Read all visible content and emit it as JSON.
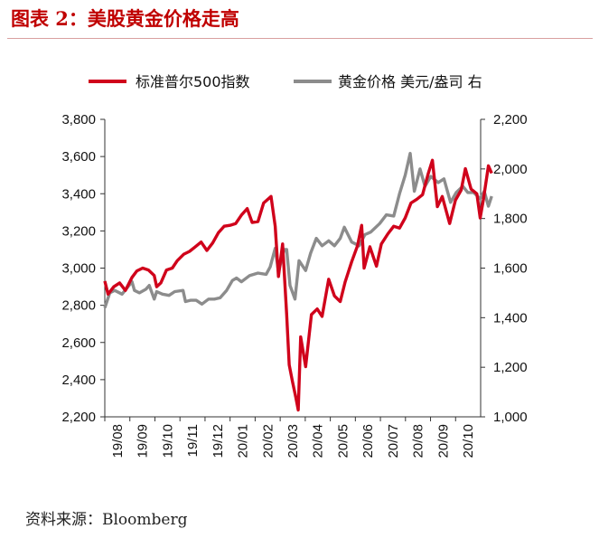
{
  "title": "图表 2：美股黄金价格走高",
  "source": "资料来源：Bloomberg",
  "chart_data": {
    "type": "line",
    "x_tick_labels": [
      "19/08",
      "19/09",
      "19/10",
      "19/11",
      "19/12",
      "20/01",
      "20/02",
      "20/03",
      "20/04",
      "20/05",
      "20/06",
      "20/07",
      "20/08",
      "20/09",
      "20/10"
    ],
    "y_left": {
      "ylim": [
        2200,
        3800
      ],
      "ticks": [
        "2,200",
        "2,400",
        "2,600",
        "2,800",
        "3,000",
        "3,200",
        "3,400",
        "3,600",
        "3,800"
      ]
    },
    "y_right": {
      "ylim": [
        1000,
        2200
      ],
      "ticks": [
        "1,000",
        "1,200",
        "1,400",
        "1,600",
        "1,800",
        "2,000",
        "2,200"
      ]
    },
    "grid": false,
    "legend_position": "top",
    "series": [
      {
        "name": "标准普尔500指数",
        "axis": "left",
        "color": "#d0021b",
        "points": [
          [
            "2019-08-01",
            2930
          ],
          [
            "2019-08-05",
            2860
          ],
          [
            "2019-08-12",
            2900
          ],
          [
            "2019-08-19",
            2920
          ],
          [
            "2019-08-26",
            2880
          ],
          [
            "2019-09-03",
            2950
          ],
          [
            "2019-09-09",
            2985
          ],
          [
            "2019-09-16",
            3000
          ],
          [
            "2019-09-23",
            2990
          ],
          [
            "2019-09-30",
            2960
          ],
          [
            "2019-10-03",
            2900
          ],
          [
            "2019-10-08",
            2920
          ],
          [
            "2019-10-15",
            2990
          ],
          [
            "2019-10-22",
            3000
          ],
          [
            "2019-10-28",
            3040
          ],
          [
            "2019-11-05",
            3075
          ],
          [
            "2019-11-12",
            3090
          ],
          [
            "2019-11-19",
            3115
          ],
          [
            "2019-11-26",
            3140
          ],
          [
            "2019-12-03",
            3095
          ],
          [
            "2019-12-10",
            3135
          ],
          [
            "2019-12-17",
            3190
          ],
          [
            "2019-12-24",
            3225
          ],
          [
            "2019-12-31",
            3230
          ],
          [
            "2020-01-07",
            3240
          ],
          [
            "2020-01-14",
            3285
          ],
          [
            "2020-01-21",
            3320
          ],
          [
            "2020-01-27",
            3245
          ],
          [
            "2020-02-03",
            3250
          ],
          [
            "2020-02-10",
            3350
          ],
          [
            "2020-02-19",
            3385
          ],
          [
            "2020-02-24",
            3225
          ],
          [
            "2020-02-28",
            2955
          ],
          [
            "2020-03-04",
            3130
          ],
          [
            "2020-03-09",
            2750
          ],
          [
            "2020-03-12",
            2480
          ],
          [
            "2020-03-16",
            2390
          ],
          [
            "2020-03-20",
            2305
          ],
          [
            "2020-03-23",
            2237
          ],
          [
            "2020-03-26",
            2630
          ],
          [
            "2020-04-01",
            2470
          ],
          [
            "2020-04-08",
            2750
          ],
          [
            "2020-04-15",
            2780
          ],
          [
            "2020-04-21",
            2740
          ],
          [
            "2020-04-29",
            2940
          ],
          [
            "2020-05-06",
            2850
          ],
          [
            "2020-05-13",
            2820
          ],
          [
            "2020-05-19",
            2925
          ],
          [
            "2020-05-27",
            3035
          ],
          [
            "2020-06-03",
            3120
          ],
          [
            "2020-06-08",
            3230
          ],
          [
            "2020-06-11",
            3000
          ],
          [
            "2020-06-18",
            3115
          ],
          [
            "2020-06-26",
            3010
          ],
          [
            "2020-07-02",
            3130
          ],
          [
            "2020-07-10",
            3185
          ],
          [
            "2020-07-17",
            3225
          ],
          [
            "2020-07-24",
            3215
          ],
          [
            "2020-07-31",
            3270
          ],
          [
            "2020-08-07",
            3350
          ],
          [
            "2020-08-14",
            3370
          ],
          [
            "2020-08-21",
            3395
          ],
          [
            "2020-08-28",
            3510
          ],
          [
            "2020-09-02",
            3580
          ],
          [
            "2020-09-08",
            3330
          ],
          [
            "2020-09-14",
            3385
          ],
          [
            "2020-09-23",
            3240
          ],
          [
            "2020-09-30",
            3365
          ],
          [
            "2020-10-07",
            3420
          ],
          [
            "2020-10-12",
            3535
          ],
          [
            "2020-10-19",
            3425
          ],
          [
            "2020-10-26",
            3400
          ],
          [
            "2020-10-30",
            3270
          ],
          [
            "2020-11-03",
            3370
          ],
          [
            "2020-11-09",
            3550
          ],
          [
            "2020-11-13",
            3510
          ]
        ]
      },
      {
        "name": "黄金价格 美元/盎司 右",
        "axis": "right",
        "color": "#8c8c8c",
        "points": [
          [
            "2019-08-01",
            1440
          ],
          [
            "2019-08-07",
            1500
          ],
          [
            "2019-08-13",
            1510
          ],
          [
            "2019-08-22",
            1495
          ],
          [
            "2019-09-03",
            1545
          ],
          [
            "2019-09-06",
            1510
          ],
          [
            "2019-09-12",
            1500
          ],
          [
            "2019-09-20",
            1515
          ],
          [
            "2019-09-24",
            1530
          ],
          [
            "2019-09-30",
            1475
          ],
          [
            "2019-10-03",
            1505
          ],
          [
            "2019-10-10",
            1495
          ],
          [
            "2019-10-18",
            1490
          ],
          [
            "2019-10-25",
            1505
          ],
          [
            "2019-11-04",
            1510
          ],
          [
            "2019-11-07",
            1465
          ],
          [
            "2019-11-13",
            1470
          ],
          [
            "2019-11-20",
            1470
          ],
          [
            "2019-11-27",
            1455
          ],
          [
            "2019-12-05",
            1475
          ],
          [
            "2019-12-12",
            1475
          ],
          [
            "2019-12-19",
            1480
          ],
          [
            "2019-12-27",
            1510
          ],
          [
            "2020-01-03",
            1550
          ],
          [
            "2020-01-08",
            1560
          ],
          [
            "2020-01-14",
            1545
          ],
          [
            "2020-01-24",
            1570
          ],
          [
            "2020-02-03",
            1580
          ],
          [
            "2020-02-13",
            1575
          ],
          [
            "2020-02-18",
            1605
          ],
          [
            "2020-02-24",
            1680
          ],
          [
            "2020-02-28",
            1585
          ],
          [
            "2020-03-06",
            1675
          ],
          [
            "2020-03-09",
            1675
          ],
          [
            "2020-03-13",
            1530
          ],
          [
            "2020-03-19",
            1475
          ],
          [
            "2020-03-24",
            1630
          ],
          [
            "2020-04-01",
            1590
          ],
          [
            "2020-04-07",
            1660
          ],
          [
            "2020-04-14",
            1720
          ],
          [
            "2020-04-21",
            1690
          ],
          [
            "2020-04-29",
            1710
          ],
          [
            "2020-05-06",
            1690
          ],
          [
            "2020-05-13",
            1720
          ],
          [
            "2020-05-18",
            1765
          ],
          [
            "2020-05-27",
            1705
          ],
          [
            "2020-06-05",
            1690
          ],
          [
            "2020-06-12",
            1735
          ],
          [
            "2020-06-19",
            1745
          ],
          [
            "2020-06-30",
            1780
          ],
          [
            "2020-07-08",
            1815
          ],
          [
            "2020-07-17",
            1810
          ],
          [
            "2020-07-24",
            1900
          ],
          [
            "2020-07-31",
            1975
          ],
          [
            "2020-08-06",
            2063
          ],
          [
            "2020-08-11",
            1910
          ],
          [
            "2020-08-18",
            2000
          ],
          [
            "2020-08-24",
            1930
          ],
          [
            "2020-08-31",
            1970
          ],
          [
            "2020-09-09",
            1945
          ],
          [
            "2020-09-16",
            1960
          ],
          [
            "2020-09-24",
            1865
          ],
          [
            "2020-10-01",
            1905
          ],
          [
            "2020-10-09",
            1930
          ],
          [
            "2020-10-15",
            1905
          ],
          [
            "2020-10-22",
            1905
          ],
          [
            "2020-10-30",
            1880
          ],
          [
            "2020-11-04",
            1910
          ],
          [
            "2020-11-09",
            1850
          ],
          [
            "2020-11-13",
            1890
          ]
        ]
      }
    ]
  }
}
